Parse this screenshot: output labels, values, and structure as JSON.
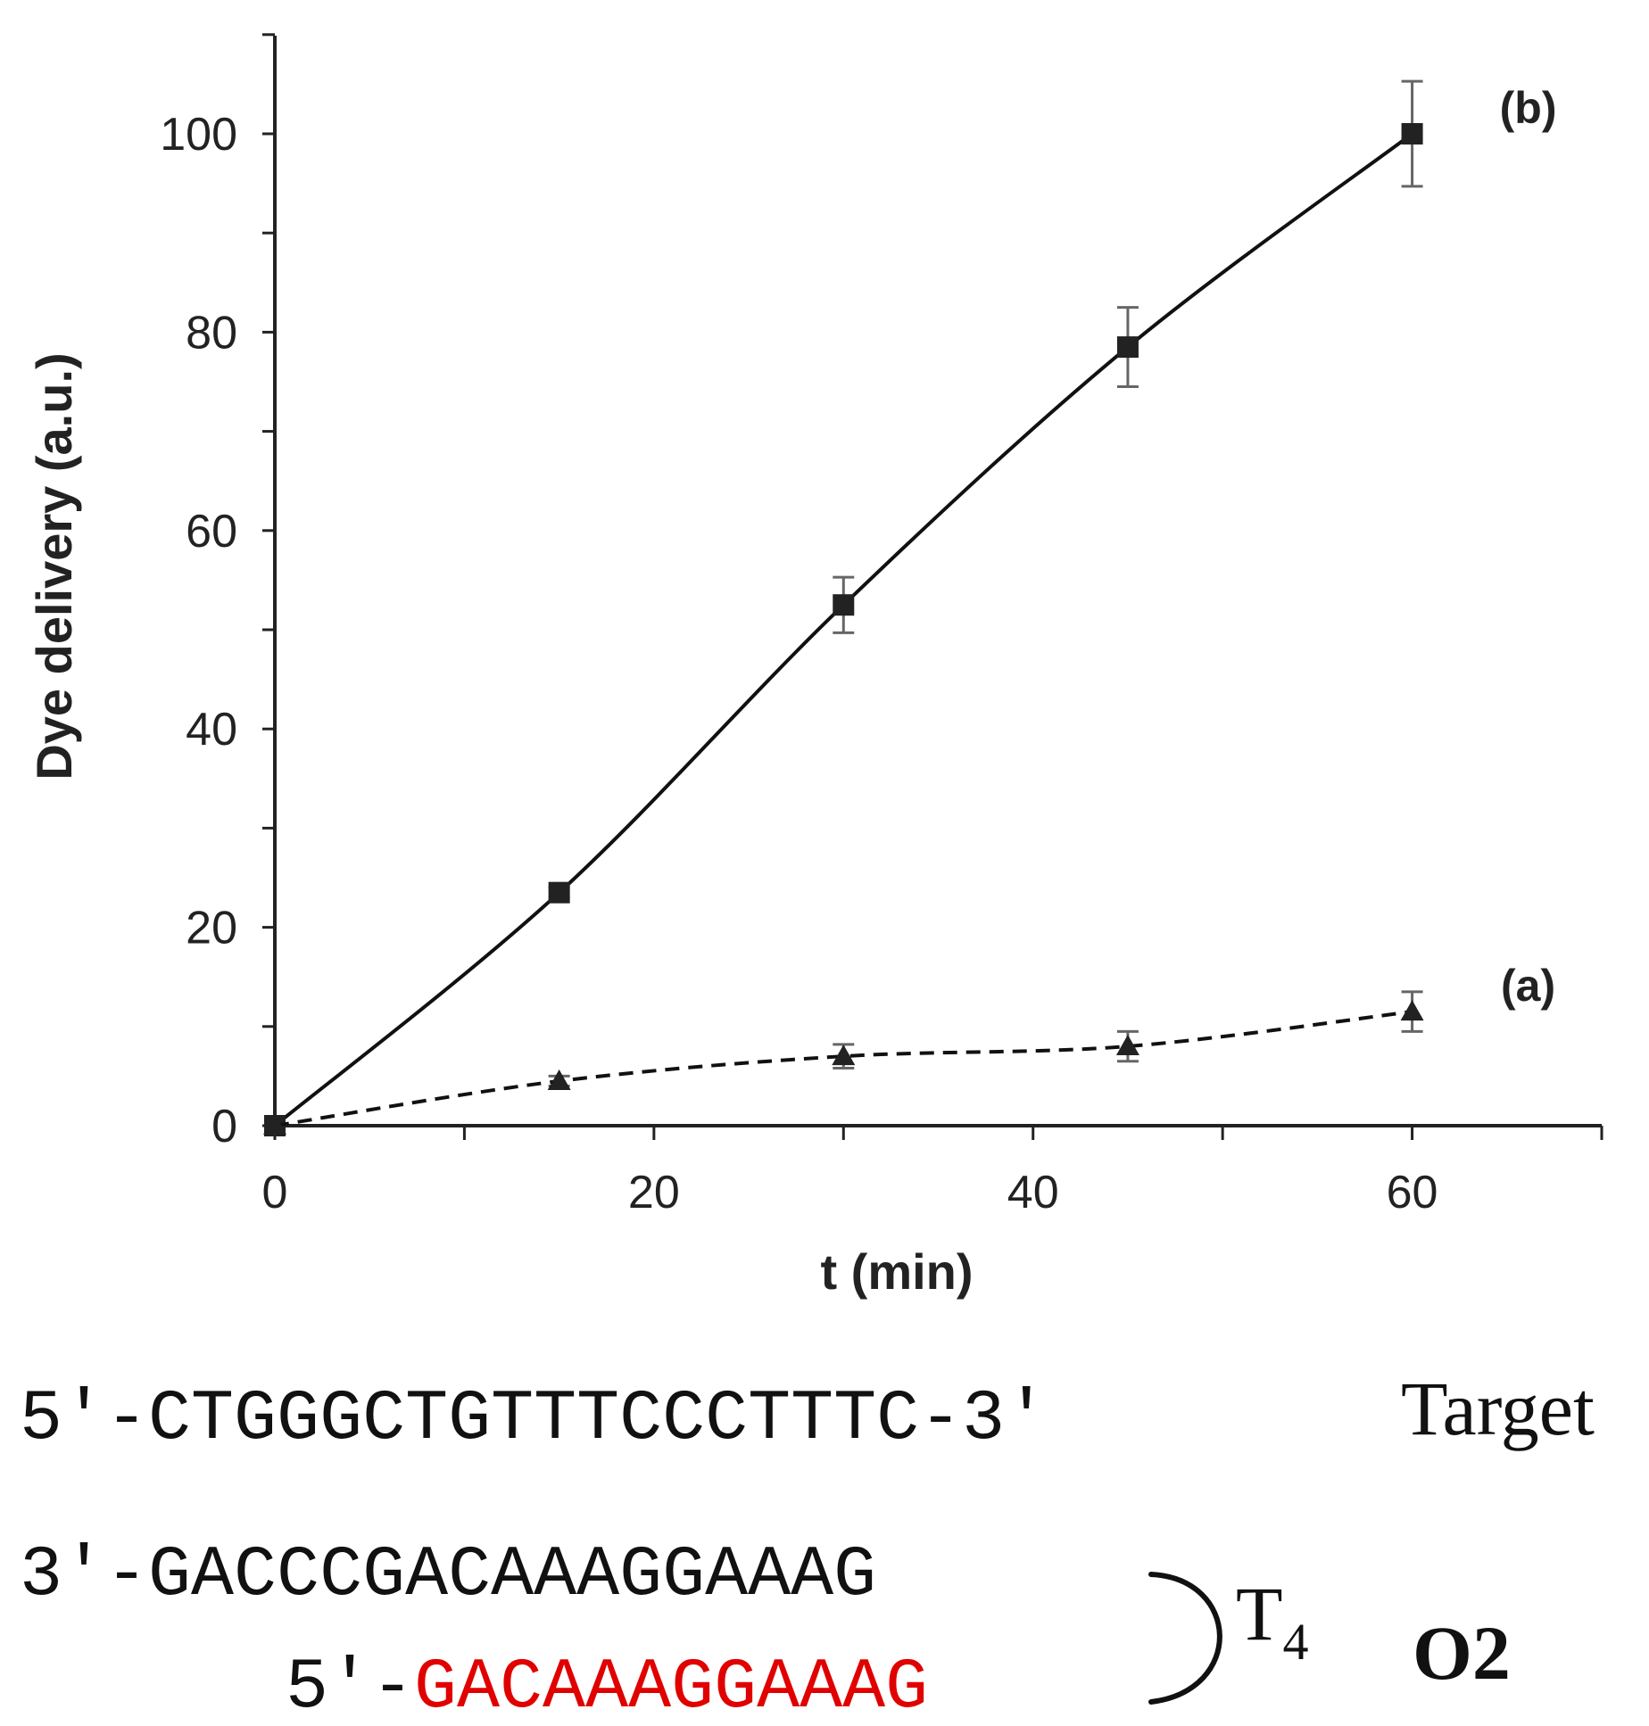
{
  "chart_data": {
    "type": "line",
    "xlabel": "t (min)",
    "ylabel": "Dye delivery (a.u.)",
    "xlim": [
      0,
      70
    ],
    "ylim": [
      0,
      110
    ],
    "xticks": [
      0,
      20,
      40,
      60
    ],
    "yticks": [
      0,
      20,
      40,
      60,
      80,
      100
    ],
    "grid": false,
    "series": [
      {
        "name": "(b)",
        "marker": "square",
        "line_style": "solid",
        "x": [
          0,
          15,
          30,
          45,
          60
        ],
        "y": [
          0,
          23.5,
          52.5,
          78.5,
          100
        ],
        "error": [
          0,
          0.5,
          2.8,
          4,
          5.3
        ]
      },
      {
        "name": "(a)",
        "marker": "triangle",
        "line_style": "dashed",
        "x": [
          0,
          15,
          30,
          45,
          60
        ],
        "y": [
          0,
          4.5,
          7,
          8,
          11.5
        ],
        "error": [
          0,
          0.5,
          1.2,
          1.5,
          2
        ]
      }
    ]
  },
  "sequences": {
    "target": {
      "prefix": "5'-",
      "sequence": "CTGGGCTGTTTCCCTTTC",
      "suffix": "-3'",
      "label": "Target"
    },
    "o2_top": {
      "prefix": "3'-",
      "sequence": "GACCCGACAAAGGAAAG"
    },
    "o2_bottom": {
      "prefix": "5'-",
      "sequence": "GACAAAGGAAAG",
      "color": "#e00000"
    },
    "loop": {
      "base": "T",
      "subscript": "4"
    },
    "probe_label": "O2"
  }
}
